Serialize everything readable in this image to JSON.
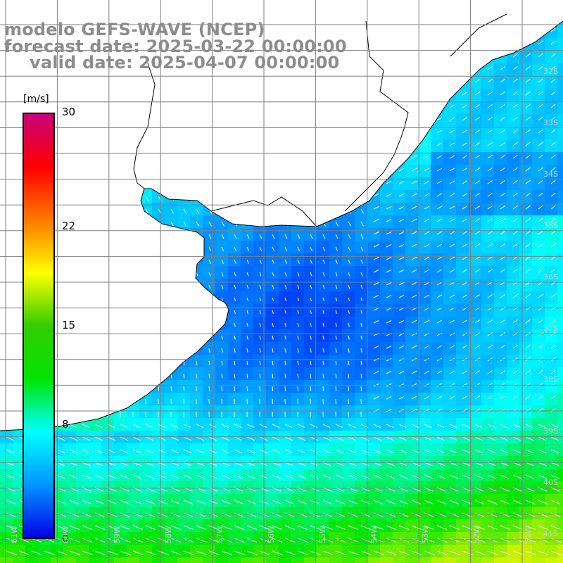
{
  "title": {
    "line1": "modelo GEFS-WAVE (NCEP)",
    "line2": "forecast date: 2025-03-22 00:00:00",
    "line3": "valid date: 2025-04-07 00:00:00"
  },
  "colorbar": {
    "units": "[m/s]",
    "ticks": [
      {
        "label": "30",
        "value": 30
      },
      {
        "label": "22",
        "value": 22
      },
      {
        "label": "15",
        "value": 15
      },
      {
        "label": "8",
        "value": 8
      },
      {
        "label": "0",
        "value": 0
      }
    ],
    "colors": [
      "#0000e6",
      "#0096ff",
      "#00ffff",
      "#00e600",
      "#32cd00",
      "#ffff00",
      "#ff7800",
      "#ff0000",
      "#c8007a"
    ]
  },
  "lat_labels": [
    "32S",
    "33S",
    "34S",
    "35S",
    "36S",
    "37S",
    "38S",
    "39S",
    "40S",
    "41S"
  ],
  "lon_labels": [
    "61W",
    "60W",
    "59W",
    "58W",
    "57W",
    "56W",
    "55W",
    "54W",
    "53W",
    "52W",
    "51W"
  ],
  "field": {
    "description_units": "m/s",
    "ocean_base": "#0096ff"
  }
}
